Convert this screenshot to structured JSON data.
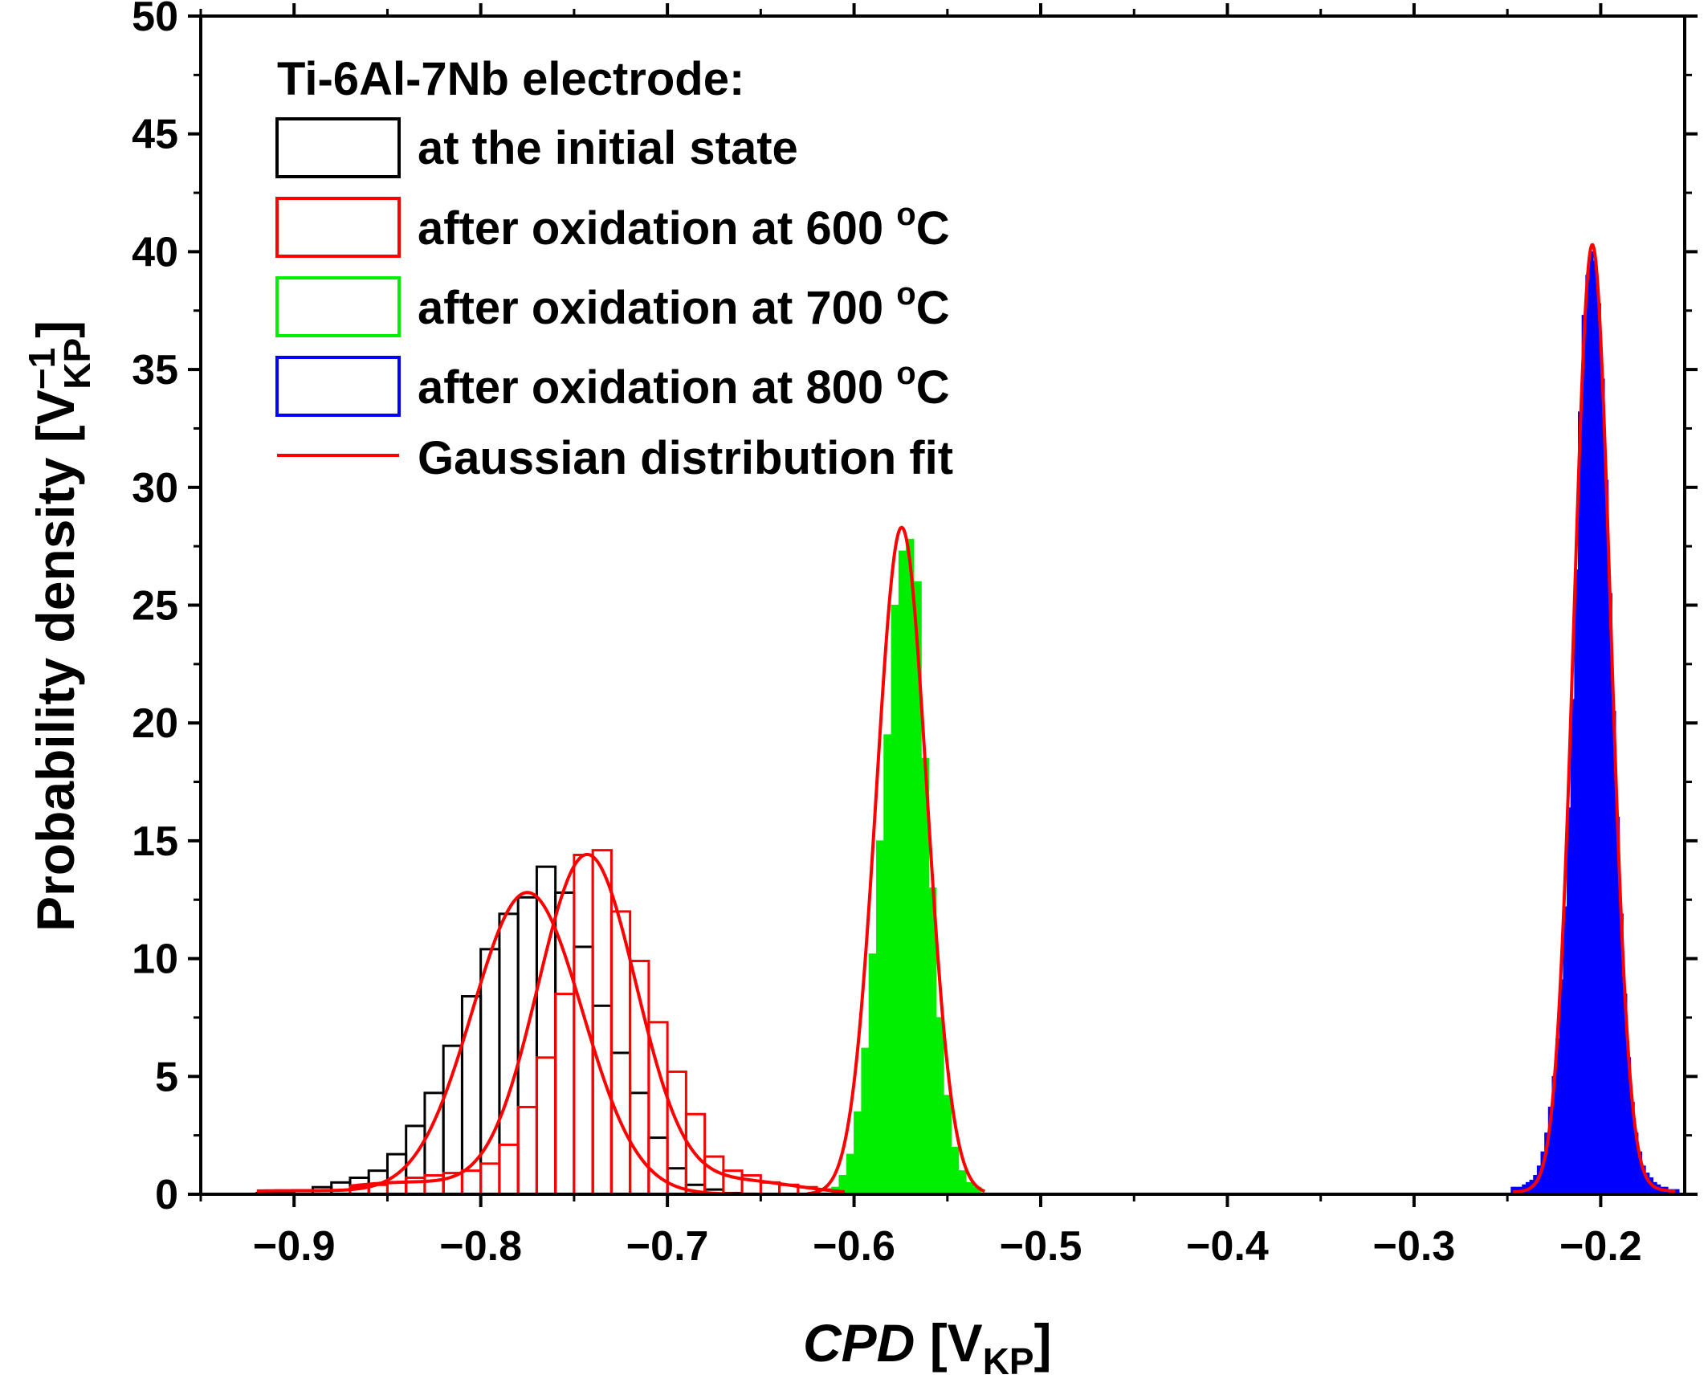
{
  "chart_data": {
    "type": "histogram",
    "title": "",
    "xlabel": {
      "main": "CPD",
      "bracket_open": " [V",
      "sub": "KP",
      "bracket_close": "]"
    },
    "ylabel": {
      "main": "Probability density [V",
      "sup": "−1",
      "sub": "KP",
      "bracket_close": "]"
    },
    "xlim": [
      -0.95,
      -0.155
    ],
    "ylim": [
      0,
      50
    ],
    "xticks": [
      -0.9,
      -0.8,
      -0.7,
      -0.6,
      -0.5,
      -0.4,
      -0.3,
      -0.2
    ],
    "xtick_labels": [
      "−0.9",
      "−0.8",
      "−0.7",
      "−0.6",
      "−0.5",
      "−0.4",
      "−0.3",
      "−0.2"
    ],
    "yticks": [
      0,
      5,
      10,
      15,
      20,
      25,
      30,
      35,
      40,
      45,
      50
    ],
    "ytick_labels": [
      "0",
      "5",
      "10",
      "15",
      "20",
      "25",
      "30",
      "35",
      "40",
      "45",
      "50"
    ],
    "legend": {
      "title": "Ti-6Al-7Nb electrode:",
      "position": "top-left",
      "entries": [
        {
          "label": "at the initial state",
          "kind": "box",
          "color": "#000000"
        },
        {
          "label": "after oxidation at 600 ",
          "sup": "o",
          "unit": "C",
          "kind": "box",
          "color": "#ff0000"
        },
        {
          "label": "after oxidation at 700 ",
          "sup": "o",
          "unit": "C",
          "kind": "box",
          "color": "#00ee00"
        },
        {
          "label": "after oxidation at 800 ",
          "sup": "o",
          "unit": "C",
          "kind": "box",
          "color": "#0000ff"
        },
        {
          "label": "Gaussian distribution fit",
          "kind": "line",
          "color": "#ff0000"
        }
      ]
    },
    "series": [
      {
        "name": "at the initial state",
        "color": "#000000",
        "fill": "none",
        "bin_width": 0.01,
        "bin_centers": [
          -0.915,
          -0.905,
          -0.895,
          -0.885,
          -0.875,
          -0.865,
          -0.855,
          -0.845,
          -0.835,
          -0.825,
          -0.815,
          -0.805,
          -0.795,
          -0.785,
          -0.775,
          -0.765,
          -0.755,
          -0.745,
          -0.735,
          -0.725,
          -0.715,
          -0.705,
          -0.695,
          -0.685,
          -0.675,
          -0.665
        ],
        "values": [
          0.05,
          0.1,
          0.15,
          0.3,
          0.5,
          0.7,
          1.0,
          1.7,
          2.9,
          4.3,
          6.3,
          8.4,
          10.4,
          11.9,
          12.6,
          13.9,
          12.8,
          10.5,
          8.0,
          6.0,
          4.3,
          2.4,
          1.1,
          0.4,
          0.2,
          0.05
        ]
      },
      {
        "name": "after oxidation at 600 °C",
        "color": "#ff0000",
        "fill": "none",
        "bin_width": 0.01,
        "bin_centers": [
          -0.865,
          -0.855,
          -0.845,
          -0.835,
          -0.825,
          -0.815,
          -0.805,
          -0.795,
          -0.785,
          -0.775,
          -0.765,
          -0.755,
          -0.745,
          -0.735,
          -0.725,
          -0.715,
          -0.705,
          -0.695,
          -0.685,
          -0.675,
          -0.665,
          -0.655,
          -0.645,
          -0.635,
          -0.625,
          -0.615
        ],
        "values": [
          0.3,
          0.4,
          0.5,
          0.7,
          0.8,
          0.9,
          1.0,
          1.3,
          2.1,
          3.7,
          5.8,
          8.5,
          14.4,
          14.6,
          12.0,
          9.9,
          7.3,
          5.2,
          3.4,
          1.6,
          1.0,
          0.8,
          0.5,
          0.4,
          0.3,
          0.2
        ]
      },
      {
        "name": "after oxidation at 700 °C",
        "color": "#00ee00",
        "fill": "#00ee00",
        "bin_width": 0.004,
        "bin_centers": [
          -0.61,
          -0.606,
          -0.602,
          -0.598,
          -0.594,
          -0.59,
          -0.586,
          -0.582,
          -0.578,
          -0.574,
          -0.57,
          -0.566,
          -0.562,
          -0.558,
          -0.554,
          -0.55,
          -0.546,
          -0.542,
          -0.538,
          -0.534
        ],
        "values": [
          0.3,
          0.8,
          1.7,
          3.5,
          6.2,
          10.2,
          15.0,
          19.5,
          25.0,
          27.3,
          27.8,
          26.0,
          18.5,
          13.0,
          7.5,
          4.2,
          2.0,
          1.0,
          0.5,
          0.3
        ]
      },
      {
        "name": "after oxidation at 800 °C",
        "color": "#0000ff",
        "fill": "#0000ff",
        "bin_width": 0.002,
        "bin_centers": [
          -0.247,
          -0.245,
          -0.243,
          -0.241,
          -0.239,
          -0.237,
          -0.235,
          -0.233,
          -0.231,
          -0.229,
          -0.227,
          -0.225,
          -0.223,
          -0.221,
          -0.219,
          -0.217,
          -0.215,
          -0.213,
          -0.211,
          -0.209,
          -0.207,
          -0.205,
          -0.203,
          -0.201,
          -0.199,
          -0.197,
          -0.195,
          -0.193,
          -0.191,
          -0.189,
          -0.187,
          -0.185,
          -0.183,
          -0.181,
          -0.179,
          -0.177,
          -0.175,
          -0.173,
          -0.171,
          -0.169,
          -0.167,
          -0.165,
          -0.163,
          -0.161,
          -0.159
        ],
        "values": [
          0.3,
          0.3,
          0.3,
          0.4,
          0.5,
          0.6,
          0.8,
          1.2,
          1.8,
          2.6,
          3.7,
          5.0,
          6.6,
          9.1,
          12.2,
          16.4,
          21.0,
          26.5,
          33.2,
          37.3,
          39.0,
          40.0,
          39.6,
          37.8,
          34.6,
          30.3,
          25.5,
          20.5,
          16.0,
          11.9,
          8.5,
          5.8,
          3.9,
          2.6,
          1.8,
          1.2,
          0.9,
          0.7,
          0.5,
          0.4,
          0.3,
          0.3,
          0.2,
          0.2,
          0.2
        ]
      }
    ],
    "fits": [
      {
        "name": "Gaussian fit (initial state)",
        "color": "#ff0000",
        "x_range": [
          -0.92,
          -0.65
        ],
        "components": [
          {
            "amplitude": 12.8,
            "mean": -0.775,
            "sigma": 0.0295
          },
          {
            "amplitude": 0.15,
            "mean": -0.9,
            "sigma": 0.05
          }
        ]
      },
      {
        "name": "Gaussian fit (600 °C)",
        "color": "#ff0000",
        "x_range": [
          -0.87,
          -0.605
        ],
        "components": [
          {
            "amplitude": 14.4,
            "mean": -0.743,
            "sigma": 0.0265
          },
          {
            "amplitude": 0.55,
            "mean": -0.66,
            "sigma": 0.03
          },
          {
            "amplitude": 0.5,
            "mean": -0.84,
            "sigma": 0.035
          }
        ]
      },
      {
        "name": "Gaussian fit (700 °C)",
        "color": "#ff0000",
        "x_range": [
          -0.625,
          -0.53
        ],
        "components": [
          {
            "amplitude": 28.3,
            "mean": -0.5745,
            "sigma": 0.0135
          }
        ]
      },
      {
        "name": "Gaussian fit (800 °C)",
        "color": "#ff0000",
        "x_range": [
          -0.247,
          -0.16
        ],
        "components": [
          {
            "amplitude": 40.0,
            "mean": -0.2045,
            "sigma": 0.0098
          },
          {
            "amplitude": 0.3,
            "mean": -0.2,
            "sigma": 0.03
          }
        ]
      }
    ]
  }
}
